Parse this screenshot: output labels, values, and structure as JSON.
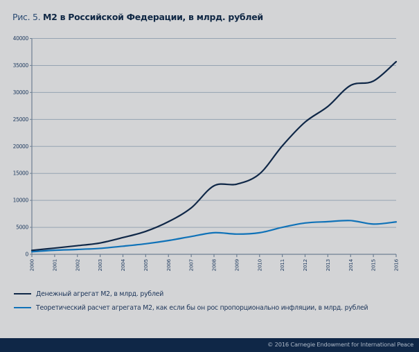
{
  "title": {
    "prefix": "Рис. 5.",
    "main": "М2 в Российской Федерации, в млрд. рублей"
  },
  "chart_data": {
    "type": "line",
    "title": "М2 в Российской Федерации, в млрд. рублей",
    "xlabel": "",
    "ylabel": "",
    "x": [
      2000,
      2001,
      2002,
      2003,
      2004,
      2005,
      2006,
      2007,
      2008,
      2009,
      2010,
      2011,
      2012,
      2013,
      2014,
      2015,
      2016
    ],
    "x_tick_labels": [
      "2000",
      "2001",
      "2002",
      "2003",
      "2004",
      "2005",
      "2006",
      "2007",
      "2008",
      "2009",
      "2010",
      "2011",
      "2012",
      "2013",
      "2014",
      "2015",
      "2016"
    ],
    "y_ticks": [
      0,
      5000,
      10000,
      15000,
      20000,
      25000,
      30000,
      35000,
      40000
    ],
    "y_tick_labels": [
      "0",
      "5000",
      "10000",
      "15000",
      "20000",
      "25000",
      "30000",
      "35000",
      "40000"
    ],
    "ylim": [
      0,
      40000
    ],
    "grid": true,
    "legend_position": "bottom",
    "series": [
      {
        "name": "Денежный агрегат М2, в млрд. рублей",
        "color": "#0f2747",
        "values": [
          730,
          1150,
          1600,
          2100,
          3100,
          4250,
          6050,
          8600,
          12700,
          13000,
          14900,
          20100,
          24500,
          27400,
          31300,
          32100,
          35700
        ]
      },
      {
        "name": "Теоретический расчет агрегата М2, как если бы он рос пропорционально инфляции, в млрд. рублей",
        "color": "#0f72b8",
        "values": [
          470,
          750,
          900,
          1100,
          1500,
          1950,
          2550,
          3300,
          4000,
          3750,
          4000,
          5000,
          5800,
          6050,
          6250,
          5600,
          6000
        ]
      }
    ]
  },
  "footer": {
    "copyright": "© 2016 Carnegie Endowment for International Peace"
  }
}
